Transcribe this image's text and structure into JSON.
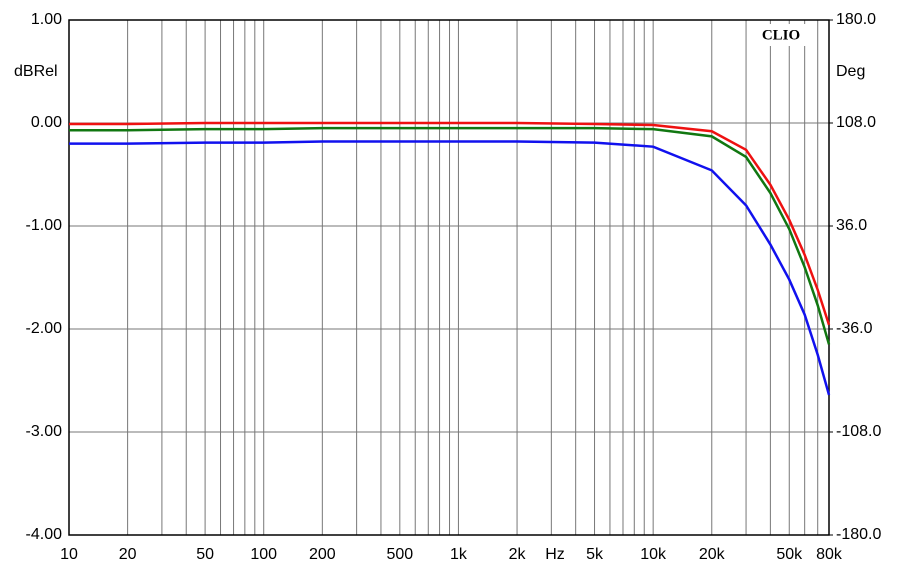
{
  "chart_data": {
    "type": "line",
    "brand": "CLIO",
    "ylabel": "dBRel",
    "y2label": "Deg",
    "xlabel": "Hz",
    "xscale": "log",
    "grid": true,
    "xlim": [
      10,
      80000
    ],
    "ylim": [
      -4,
      1
    ],
    "y2lim": [
      -180,
      180
    ],
    "xticks": [
      10,
      20,
      50,
      100,
      200,
      500,
      {
        "value": 1000,
        "label": "1k"
      },
      {
        "value": 2000,
        "label": "2k"
      },
      {
        "value": 5000,
        "label": "5k"
      },
      {
        "value": 10000,
        "label": "10k"
      },
      {
        "value": 20000,
        "label": "20k"
      },
      {
        "value": 50000,
        "label": "50k"
      },
      {
        "value": 80000,
        "label": "80k"
      }
    ],
    "x_minor_grid": [
      30,
      40,
      60,
      70,
      80,
      90,
      300,
      400,
      600,
      700,
      800,
      900,
      3000,
      4000,
      6000,
      7000,
      8000,
      9000,
      30000,
      40000,
      60000,
      70000
    ],
    "yticks": [
      {
        "value": 1,
        "label": "1.00"
      },
      {
        "value": 0,
        "label": "0.00"
      },
      {
        "value": -1,
        "label": "-1.00"
      },
      {
        "value": -2,
        "label": "-2.00"
      },
      {
        "value": -3,
        "label": "-3.00"
      },
      {
        "value": -4,
        "label": "-4.00"
      }
    ],
    "y2ticks": [
      {
        "value": 180,
        "label": "180.0"
      },
      {
        "value": 108,
        "label": "108.0"
      },
      {
        "value": 36,
        "label": "36.0"
      },
      {
        "value": -36,
        "label": "-36.0"
      },
      {
        "value": -108,
        "label": "-108.0"
      },
      {
        "value": -180,
        "label": "-180.0"
      }
    ],
    "x": [
      10,
      20,
      50,
      100,
      200,
      500,
      1000,
      2000,
      5000,
      10000,
      20000,
      30000,
      40000,
      50000,
      60000,
      70000,
      80000
    ],
    "series": [
      {
        "color": "#ee1111",
        "values": [
          -0.01,
          -0.01,
          0,
          0,
          0,
          0,
          0,
          0,
          -0.01,
          -0.02,
          -0.08,
          -0.26,
          -0.6,
          -0.94,
          -1.28,
          -1.62,
          -1.96
        ]
      },
      {
        "color": "#117711",
        "values": [
          -0.07,
          -0.07,
          -0.06,
          -0.06,
          -0.05,
          -0.05,
          -0.05,
          -0.05,
          -0.05,
          -0.06,
          -0.13,
          -0.33,
          -0.68,
          -1.03,
          -1.4,
          -1.77,
          -2.15
        ]
      },
      {
        "color": "#1111ee",
        "values": [
          -0.2,
          -0.2,
          -0.19,
          -0.19,
          -0.18,
          -0.18,
          -0.18,
          -0.18,
          -0.19,
          -0.23,
          -0.46,
          -0.8,
          -1.18,
          -1.52,
          -1.86,
          -2.25,
          -2.64
        ]
      }
    ]
  }
}
